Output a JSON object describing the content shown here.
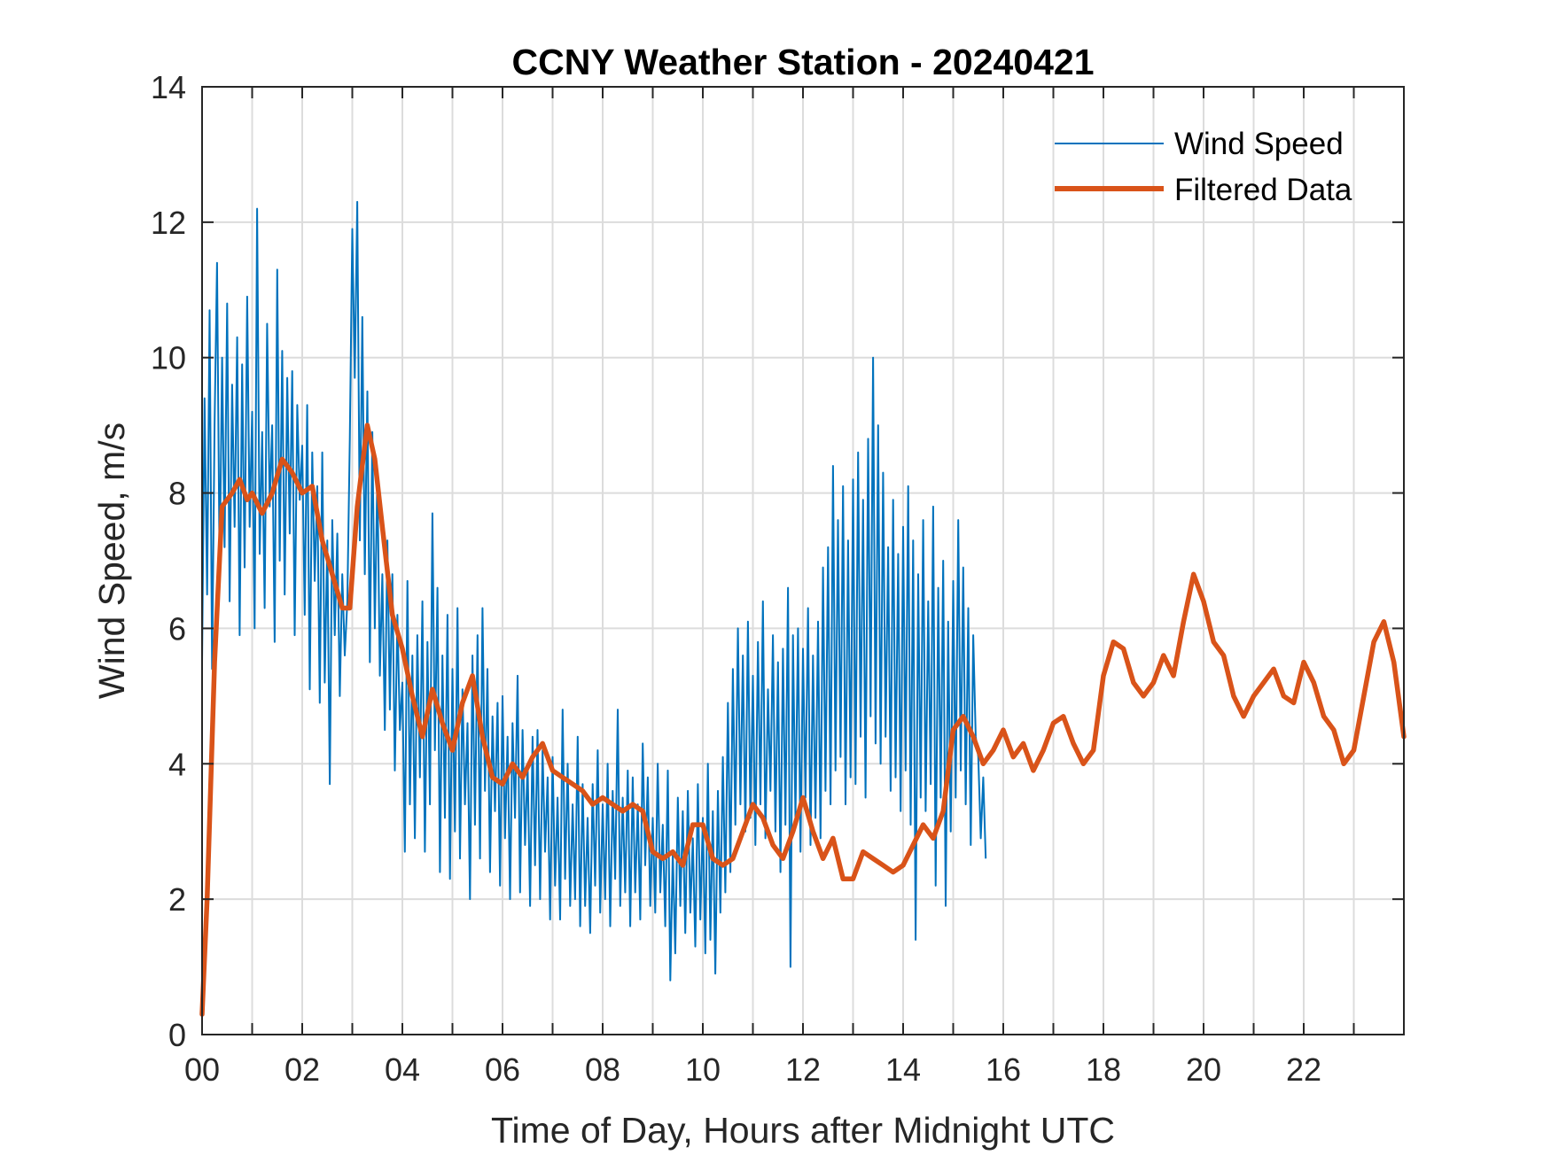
{
  "chart_data": {
    "type": "line",
    "title": "CCNY Weather Station - 20240421",
    "xlabel": "Time of Day, Hours after Midnight UTC",
    "ylabel": "Wind Speed, m/s",
    "xlim": [
      0,
      24
    ],
    "ylim": [
      0,
      14
    ],
    "grid": true,
    "legend_position": "top-right",
    "x_ticks": [
      0,
      2,
      4,
      6,
      8,
      10,
      12,
      14,
      16,
      18,
      20,
      22
    ],
    "x_tick_labels": [
      "00",
      "02",
      "04",
      "06",
      "08",
      "10",
      "12",
      "14",
      "16",
      "18",
      "20",
      "22"
    ],
    "x_minor_grid": [
      1,
      3,
      5,
      7,
      9,
      11,
      13,
      15,
      17,
      19,
      21,
      23
    ],
    "y_ticks": [
      0,
      2,
      4,
      6,
      8,
      10,
      12,
      14
    ],
    "y_tick_labels": [
      "0",
      "2",
      "4",
      "6",
      "8",
      "10",
      "12",
      "14"
    ],
    "series": [
      {
        "name": "Wind Speed",
        "color": "#0072BD",
        "note": "raw 1-min-ish samples; values estimated",
        "x_step": 0.05,
        "values": [
          5.5,
          9.4,
          6.5,
          10.7,
          5.4,
          9.0,
          11.4,
          6.8,
          10.0,
          7.2,
          10.8,
          6.4,
          9.6,
          7.5,
          10.3,
          5.9,
          9.9,
          6.9,
          10.9,
          7.5,
          9.2,
          6.0,
          12.2,
          7.1,
          8.9,
          6.3,
          10.5,
          7.8,
          9.0,
          5.8,
          11.3,
          7.0,
          10.1,
          6.5,
          9.7,
          7.4,
          9.8,
          5.9,
          9.3,
          7.9,
          8.7,
          6.2,
          9.3,
          5.1,
          8.6,
          6.7,
          8.1,
          4.9,
          8.6,
          5.2,
          7.3,
          3.7,
          7.6,
          5.9,
          7.4,
          5.0,
          6.8,
          5.6,
          6.4,
          8.8,
          11.9,
          9.7,
          12.3,
          7.3,
          10.6,
          6.8,
          9.5,
          5.5,
          8.9,
          6.0,
          8.3,
          5.3,
          6.8,
          4.5,
          7.3,
          4.8,
          6.8,
          3.9,
          6.2,
          4.5,
          5.2,
          2.7,
          6.7,
          3.4,
          5.6,
          2.9,
          5.9,
          3.8,
          6.4,
          2.7,
          5.8,
          3.4,
          7.7,
          4.2,
          6.6,
          2.4,
          5.6,
          3.2,
          6.2,
          2.3,
          5.4,
          3.0,
          6.3,
          2.6,
          5.1,
          3.4,
          4.6,
          2.0,
          5.6,
          3.1,
          5.9,
          2.6,
          6.3,
          3.6,
          5.4,
          2.4,
          4.7,
          3.3,
          4.9,
          2.2,
          5.0,
          2.9,
          4.4,
          2.0,
          4.6,
          3.2,
          5.3,
          2.1,
          4.5,
          2.8,
          4.0,
          1.9,
          4.4,
          2.5,
          4.5,
          2.0,
          4.2,
          2.7,
          3.8,
          1.7,
          4.1,
          2.2,
          3.5,
          1.7,
          4.8,
          2.3,
          4.0,
          1.9,
          3.4,
          2.0,
          4.4,
          1.6,
          3.7,
          1.9,
          3.2,
          1.5,
          3.7,
          2.2,
          4.2,
          1.8,
          3.4,
          2.0,
          4.0,
          1.6,
          3.6,
          2.3,
          4.8,
          1.9,
          3.5,
          2.1,
          3.9,
          1.6,
          3.8,
          2.1,
          3.4,
          1.7,
          4.3,
          2.5,
          3.8,
          1.9,
          3.2,
          1.8,
          4.0,
          2.1,
          3.1,
          1.6,
          3.9,
          0.8,
          2.7,
          1.2,
          3.5,
          1.9,
          3.3,
          1.5,
          3.6,
          1.8,
          2.9,
          1.3,
          3.7,
          1.7,
          3.2,
          1.2,
          4.0,
          1.4,
          3.3,
          0.9,
          3.6,
          1.8,
          4.1,
          2.1,
          4.9,
          2.4,
          5.4,
          3.1,
          6.0,
          3.4,
          5.6,
          3.0,
          6.1,
          3.2,
          5.3,
          2.8,
          5.8,
          3.4,
          6.4,
          2.9,
          5.1,
          3.6,
          5.9,
          3.0,
          5.5,
          2.4,
          5.7,
          3.1,
          6.6,
          1.0,
          5.9,
          3.2,
          6.0,
          2.7,
          5.7,
          3.5,
          6.3,
          2.8,
          5.6,
          3.2,
          6.1,
          2.9,
          6.9,
          3.6,
          7.2,
          3.4,
          8.4,
          3.9,
          7.6,
          4.1,
          8.1,
          3.4,
          7.3,
          3.8,
          8.2,
          3.7,
          8.6,
          4.4,
          7.9,
          3.5,
          8.8,
          4.7,
          10.0,
          4.3,
          9.0,
          4.0,
          8.3,
          4.4,
          7.2,
          3.6,
          7.9,
          3.8,
          7.1,
          3.3,
          7.5,
          3.9,
          8.1,
          3.1,
          7.3,
          1.4,
          6.8,
          3.5,
          7.6,
          3.3,
          6.4,
          3.7,
          7.8,
          2.2,
          6.6,
          3.5,
          7.0,
          1.9,
          6.1,
          3.0,
          6.7,
          3.5,
          7.6,
          3.9,
          6.9,
          3.4,
          6.3,
          2.8,
          5.9,
          4.4,
          4.1,
          2.9,
          3.8,
          2.6
        ]
      },
      {
        "name": "Filtered Data",
        "color": "#D95319",
        "x": [
          0.0,
          0.1,
          0.25,
          0.4,
          0.6,
          0.75,
          0.9,
          1.0,
          1.2,
          1.4,
          1.6,
          1.8,
          2.0,
          2.2,
          2.4,
          2.6,
          2.8,
          2.95,
          3.1,
          3.3,
          3.45,
          3.6,
          3.8,
          4.0,
          4.2,
          4.4,
          4.6,
          4.8,
          5.0,
          5.2,
          5.4,
          5.6,
          5.8,
          6.0,
          6.2,
          6.4,
          6.6,
          6.8,
          7.0,
          7.2,
          7.4,
          7.6,
          7.8,
          8.0,
          8.2,
          8.4,
          8.6,
          8.8,
          9.0,
          9.2,
          9.4,
          9.6,
          9.8,
          10.0,
          10.2,
          10.4,
          10.6,
          10.8,
          11.0,
          11.2,
          11.4,
          11.6,
          11.8,
          12.0,
          12.2,
          12.4,
          12.6,
          12.8,
          13.0,
          13.2,
          13.4,
          13.6,
          13.8,
          14.0,
          14.2,
          14.4,
          14.6,
          14.8,
          15.0,
          15.2,
          15.4,
          15.6,
          15.8,
          16.0,
          16.2,
          16.4,
          16.6,
          16.8,
          17.0,
          17.2,
          17.4,
          17.6,
          17.8,
          18.0,
          18.2,
          18.4,
          18.6,
          18.8,
          19.0,
          19.2,
          19.4,
          19.6,
          19.8,
          20.0,
          20.2,
          20.4,
          20.6,
          20.8,
          21.0,
          21.2,
          21.4,
          21.6,
          21.8,
          22.0,
          22.2,
          22.4,
          22.6,
          22.8,
          23.0,
          23.2,
          23.4,
          23.6,
          23.8,
          24.0
        ],
        "values": [
          0.3,
          2.0,
          5.5,
          7.8,
          8.0,
          8.2,
          7.9,
          8.0,
          7.7,
          8.0,
          8.5,
          8.3,
          8.0,
          8.1,
          7.3,
          6.8,
          6.3,
          6.3,
          7.8,
          9.0,
          8.5,
          7.5,
          6.2,
          5.7,
          5.0,
          4.4,
          5.1,
          4.6,
          4.2,
          4.9,
          5.3,
          4.4,
          3.8,
          3.7,
          4.0,
          3.8,
          4.1,
          4.3,
          3.9,
          3.8,
          3.7,
          3.6,
          3.4,
          3.5,
          3.4,
          3.3,
          3.4,
          3.3,
          2.7,
          2.6,
          2.7,
          2.5,
          3.1,
          3.1,
          2.6,
          2.5,
          2.6,
          3.0,
          3.4,
          3.2,
          2.8,
          2.6,
          3.0,
          3.5,
          3.0,
          2.6,
          2.9,
          2.3,
          2.3,
          2.7,
          2.6,
          2.5,
          2.4,
          2.5,
          2.8,
          3.1,
          2.9,
          3.3,
          4.5,
          4.7,
          4.4,
          4.0,
          4.2,
          4.5,
          4.1,
          4.3,
          3.9,
          4.2,
          4.6,
          4.7,
          4.3,
          4.0,
          4.2,
          5.3,
          5.8,
          5.7,
          5.2,
          5.0,
          5.2,
          5.6,
          5.3,
          6.1,
          6.8,
          6.4,
          5.8,
          5.6,
          5.0,
          4.7,
          5.0,
          5.2,
          5.4,
          5.0,
          4.9,
          5.5,
          5.2,
          4.7,
          4.5,
          4.0,
          4.2,
          5.0,
          5.8,
          6.1,
          5.5,
          4.4
        ]
      }
    ]
  }
}
